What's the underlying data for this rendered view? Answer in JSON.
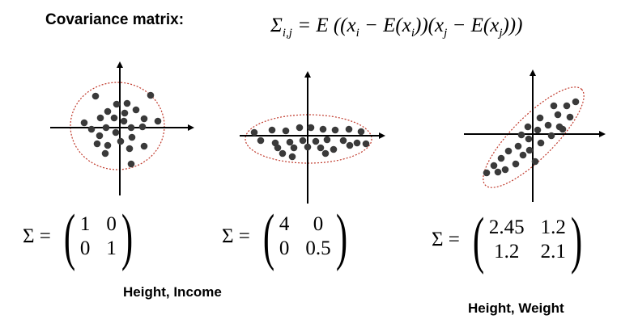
{
  "title": "Covariance matrix:",
  "formula": {
    "symbol": "Σ",
    "subscript": "i,j",
    "rhs": " = E ((x",
    "sub_i": "i",
    "part2": " − E(x",
    "sub_i2": "i",
    "part3": "))(x",
    "sub_j": "j",
    "part4": " − E(x",
    "sub_j2": "j",
    "part5": ")))"
  },
  "panels": [
    {
      "matrix_lhs": "Σ =",
      "cells": [
        "1",
        "0",
        "0",
        "1"
      ],
      "caption": "Height, Income"
    },
    {
      "matrix_lhs": "Σ =",
      "cells": [
        "4",
        "0",
        "0",
        "0.5"
      ],
      "caption": ""
    },
    {
      "matrix_lhs": "Σ =",
      "cells": [
        "2.45",
        "1.2",
        "1.2",
        "2.1"
      ],
      "caption": "Height, Weight"
    }
  ],
  "colors": {
    "points": "#3a3a3a",
    "ellipse": "#c0392b",
    "axes": "#000000"
  }
}
